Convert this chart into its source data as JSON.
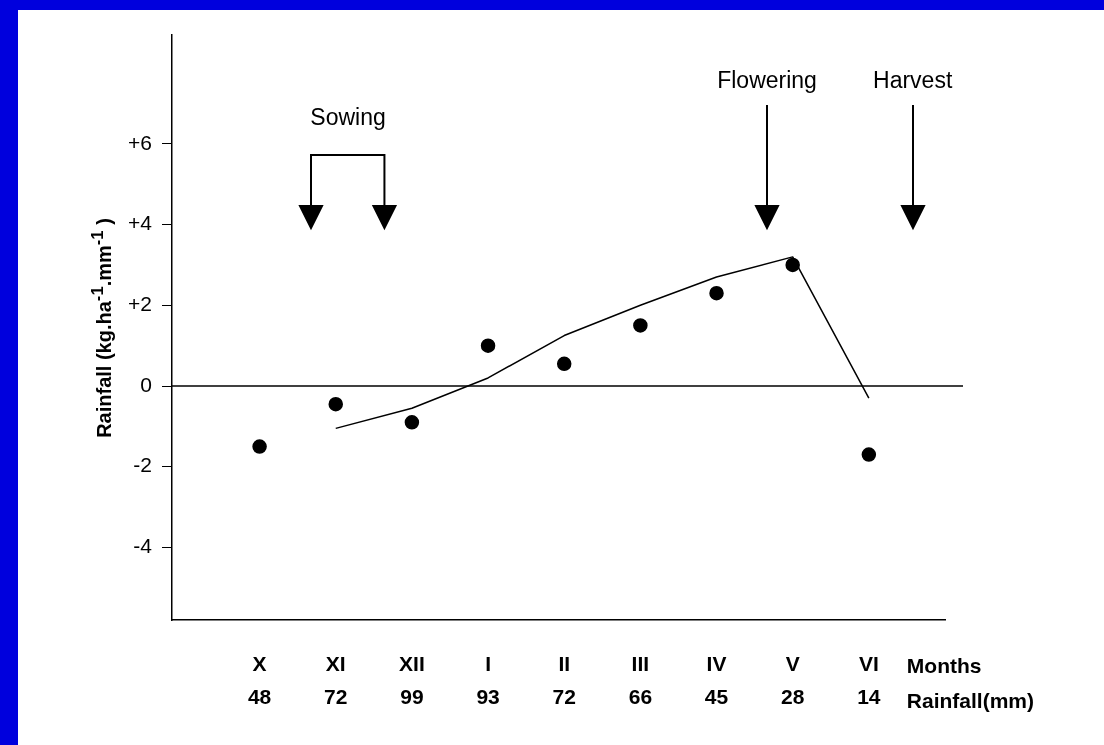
{
  "chart_data": {
    "type": "scatter",
    "xlabel": "Months\nRainfall(mm)",
    "ylabel": "Rainfall (kg.ha$^{-1}$.mm$^{-1}$ )",
    "categories": [
      "X\n48",
      "XI\n72",
      "XII\n99",
      "I\n93",
      "II\n72",
      "III\n66",
      "IV\n45",
      "V\n28",
      "VI\n14"
    ],
    "ylim": [
      -5.8,
      8.7
    ],
    "yticks": [
      {
        "value": -4,
        "label": "-4"
      },
      {
        "value": -2,
        "label": "-2"
      },
      {
        "value": 0,
        "label": "0"
      },
      {
        "value": 2,
        "label": "+2"
      },
      {
        "value": 4,
        "label": "+4"
      },
      {
        "value": 6,
        "label": "+6"
      }
    ],
    "series": [
      {
        "color": "#000000",
        "marker": "circle",
        "values": [
          -1.5,
          -0.45,
          -0.9,
          1.0,
          0.55,
          1.5,
          2.3,
          3.0,
          -1.7
        ]
      },
      {
        "type": "line",
        "color": "#000000",
        "marker": "none",
        "line_style": "solid",
        "values": [
          null,
          -1.05,
          -0.55,
          0.2,
          1.25,
          2.0,
          2.7,
          3.2,
          -0.3
        ]
      }
    ],
    "ref_lines": [
      {
        "axis": "y",
        "value": 0,
        "color": "#000000"
      }
    ],
    "annotations": [
      "Sowing",
      "Flowering",
      "Harvest"
    ],
    "grid": false,
    "legend": false
  }
}
